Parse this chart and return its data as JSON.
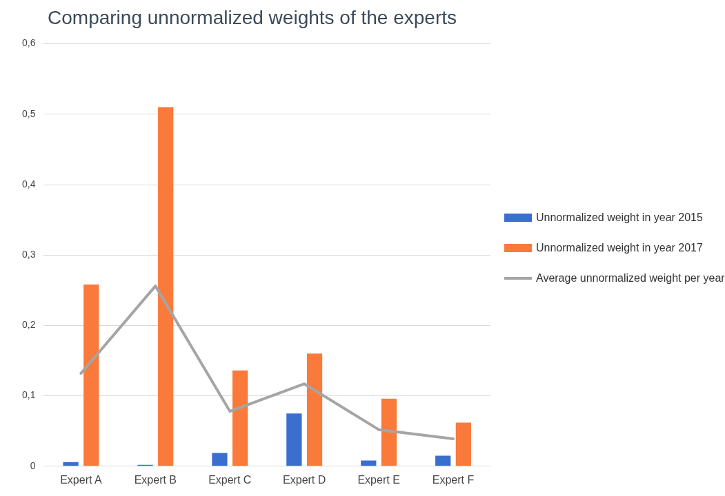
{
  "chart_data": {
    "type": "bar",
    "title": "Comparing unnormalized weights of the experts",
    "categories": [
      "Expert A",
      "Expert B",
      "Expert C",
      "Expert D",
      "Expert E",
      "Expert F"
    ],
    "series": [
      {
        "name": "Unnormalized weight in year 2015",
        "color": "#3a6fd0",
        "values": [
          0.006,
          0.002,
          0.019,
          0.075,
          0.008,
          0.015
        ]
      },
      {
        "name": "Unnormalized weight in year 2017",
        "color": "#f97a3a",
        "values": [
          0.258,
          0.51,
          0.136,
          0.16,
          0.096,
          0.062
        ]
      },
      {
        "name": "Average unnormalized weight per year",
        "type": "line",
        "color": "#a5a5a5",
        "values": [
          0.132,
          0.256,
          0.078,
          0.117,
          0.052,
          0.039
        ]
      }
    ],
    "ylim": [
      0,
      0.6
    ],
    "yticks": [
      0,
      {
        "value": 0.1,
        "label": "0,1"
      },
      {
        "value": 0.2,
        "label": "0,2"
      },
      {
        "value": 0.3,
        "label": "0,3"
      },
      {
        "value": 0.4,
        "label": "0,4"
      },
      {
        "value": 0.5,
        "label": "0,5"
      },
      {
        "value": 0.6,
        "label": "0,6"
      }
    ],
    "grid": "y",
    "legend": "right",
    "marker": "none",
    "line_style": "solid"
  }
}
